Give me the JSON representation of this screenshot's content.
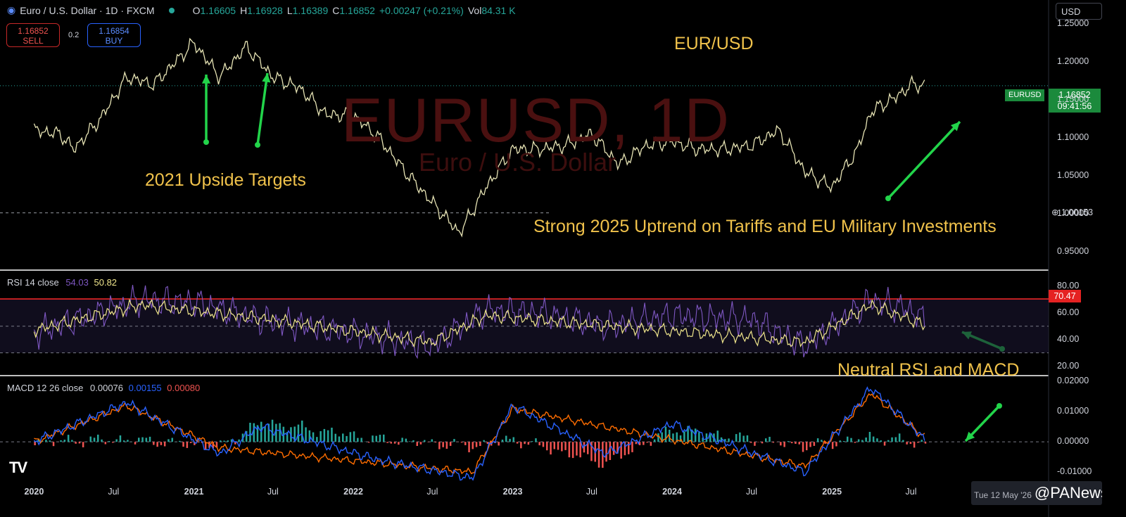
{
  "header": {
    "symbol_title": "Euro / U.S. Dollar · 1D · FXCM",
    "ohlc": [
      {
        "k": "O",
        "v": "1.16605"
      },
      {
        "k": "H",
        "v": "1.16928"
      },
      {
        "k": "L",
        "v": "1.16389"
      },
      {
        "k": "C",
        "v": "1.16852"
      },
      {
        "k": "",
        "v": "+0.00247 (+0.21%)"
      },
      {
        "k": "Vol",
        "v": "84.31 K"
      }
    ]
  },
  "trade": {
    "sell_price": "1.16852",
    "sell_label": "SELL",
    "spread": "0.2",
    "buy_price": "1.16854",
    "buy_label": "BUY"
  },
  "currency_selector": "USD",
  "colors": {
    "price_line": "#e6e3b4",
    "rsi_line": "#7e57c2",
    "rsi_ma": "#f0e68c",
    "macd_line": "#2962ff",
    "signal_line": "#ff6d00",
    "hist_up": "#26a69a",
    "hist_down": "#ef5350",
    "annotation": "#f0c24b",
    "arrow": "#22d44a",
    "overbought_line": "#ff2a2a"
  },
  "annotations": {
    "title": "EUR/USD",
    "upside_targets": "2021 Upside Targets",
    "uptrend_2025": "Strong 2025 Uptrend on Tariffs and EU Military Investments",
    "neutral": "Neutral RSI and MACD"
  },
  "watermark": {
    "main": "EURUSD, 1D",
    "sub": "Euro / U.S. Dollar"
  },
  "price_tags": {
    "symbol": "EURUSD",
    "last": "1.16852",
    "countdown": "09:41:56",
    "crosshair": "1.00153",
    "rsi_level": "70.47"
  },
  "panels": {
    "rsi": {
      "label": "RSI 14 close",
      "value1": "54.03",
      "value2": "50.82"
    },
    "macd": {
      "label": "MACD 12 26 close",
      "v1": "0.00076",
      "v2": "0.00155",
      "v3": "0.00080"
    }
  },
  "axis": {
    "price_ticks": [
      "1.25000",
      "1.20000",
      "1.15000",
      "1.10000",
      "1.05000",
      "1.00000",
      "0.95000"
    ],
    "rsi_ticks": [
      "80.00",
      "60.00",
      "40.00",
      "20.00"
    ],
    "macd_ticks": [
      "0.02000",
      "0.01000",
      "0.00000",
      "-0.01000"
    ],
    "x_ticks": [
      {
        "t": "2020",
        "bold": true
      },
      {
        "t": "Jul",
        "bold": false
      },
      {
        "t": "2021",
        "bold": true
      },
      {
        "t": "Jul",
        "bold": false
      },
      {
        "t": "2022",
        "bold": true
      },
      {
        "t": "Jul",
        "bold": false
      },
      {
        "t": "2023",
        "bold": true
      },
      {
        "t": "Jul",
        "bold": false
      },
      {
        "t": "2024",
        "bold": true
      },
      {
        "t": "Jul",
        "bold": false
      },
      {
        "t": "2025",
        "bold": true
      },
      {
        "t": "Jul",
        "bold": false
      }
    ]
  },
  "footer": {
    "logo": "TV",
    "date_chip": "Tue 12 May '26",
    "brand": "@PANews"
  },
  "chart_data": [
    {
      "type": "line",
      "title": "EUR/USD",
      "series": [
        {
          "values": [
            [
              "2020-01",
              1.11
            ],
            [
              "2020-03",
              1.105
            ],
            [
              "2020-04",
              1.085
            ],
            [
              "2020-06",
              1.125
            ],
            [
              "2020-08",
              1.18
            ],
            [
              "2020-10",
              1.17
            ],
            [
              "2021-01",
              1.225
            ],
            [
              "2021-03",
              1.18
            ],
            [
              "2021-05",
              1.22
            ],
            [
              "2021-07",
              1.18
            ],
            [
              "2021-09",
              1.165
            ],
            [
              "2021-11",
              1.13
            ],
            [
              "2022-01",
              1.13
            ],
            [
              "2022-03",
              1.1
            ],
            [
              "2022-05",
              1.055
            ],
            [
              "2022-07",
              1.015
            ],
            [
              "2022-09",
              0.975
            ],
            [
              "2022-11",
              1.035
            ],
            [
              "2023-01",
              1.085
            ],
            [
              "2023-03",
              1.085
            ],
            [
              "2023-05",
              1.09
            ],
            [
              "2023-07",
              1.105
            ],
            [
              "2023-09",
              1.065
            ],
            [
              "2023-11",
              1.09
            ],
            [
              "2024-01",
              1.095
            ],
            [
              "2024-03",
              1.085
            ],
            [
              "2024-05",
              1.085
            ],
            [
              "2024-07",
              1.09
            ],
            [
              "2024-09",
              1.11
            ],
            [
              "2024-11",
              1.055
            ],
            [
              "2025-01",
              1.035
            ],
            [
              "2025-03",
              1.085
            ],
            [
              "2025-04",
              1.135
            ],
            [
              "2025-06",
              1.155
            ],
            [
              "2025-07",
              1.17
            ],
            [
              "2025-08",
              1.16852
            ]
          ]
        }
      ],
      "ylim": [
        0.93,
        1.27
      ],
      "reference_line": 1.16852
    },
    {
      "type": "line",
      "title": "RSI 14 close",
      "series": [
        {
          "name": "RSI",
          "values": [
            [
              "2020-01",
              45
            ],
            [
              "2020-06",
              60
            ],
            [
              "2020-09",
              70
            ],
            [
              "2021-01",
              68
            ],
            [
              "2021-06",
              55
            ],
            [
              "2022-01",
              45
            ],
            [
              "2022-07",
              35
            ],
            [
              "2022-11",
              62
            ],
            [
              "2023-03",
              60
            ],
            [
              "2023-08",
              50
            ],
            [
              "2024-01",
              58
            ],
            [
              "2024-07",
              55
            ],
            [
              "2024-11",
              35
            ],
            [
              "2025-04",
              70
            ],
            [
              "2025-07",
              62
            ],
            [
              "2025-08",
              54.03
            ]
          ]
        },
        {
          "name": "MA",
          "values": [
            [
              "2020-01",
              47
            ],
            [
              "2020-09",
              66
            ],
            [
              "2021-06",
              56
            ],
            [
              "2022-07",
              38
            ],
            [
              "2022-11",
              58
            ],
            [
              "2024-11",
              38
            ],
            [
              "2025-04",
              66
            ],
            [
              "2025-08",
              50.82
            ]
          ]
        }
      ],
      "ylim": [
        15,
        90
      ],
      "levels": [
        30,
        70
      ]
    },
    {
      "type": "line",
      "title": "MACD 12 26 close",
      "series": [
        {
          "name": "MACD",
          "values": [
            [
              "2020-01",
              0.0
            ],
            [
              "2020-08",
              0.013
            ],
            [
              "2021-03",
              -0.004
            ],
            [
              "2021-06",
              0.005
            ],
            [
              "2022-03",
              -0.006
            ],
            [
              "2022-10",
              -0.012
            ],
            [
              "2023-01",
              0.012
            ],
            [
              "2023-08",
              -0.004
            ],
            [
              "2024-01",
              0.006
            ],
            [
              "2024-11",
              -0.01
            ],
            [
              "2025-04",
              0.018
            ],
            [
              "2025-08",
              0.00076
            ]
          ]
        },
        {
          "name": "Signal",
          "values": [
            [
              "2020-01",
              0.0
            ],
            [
              "2020-08",
              0.012
            ],
            [
              "2021-03",
              -0.002
            ],
            [
              "2022-10",
              -0.01
            ],
            [
              "2023-01",
              0.011
            ],
            [
              "2024-11",
              -0.008
            ],
            [
              "2025-04",
              0.016
            ],
            [
              "2025-08",
              0.00155
            ]
          ]
        }
      ],
      "ylim": [
        -0.013,
        0.021
      ]
    }
  ]
}
